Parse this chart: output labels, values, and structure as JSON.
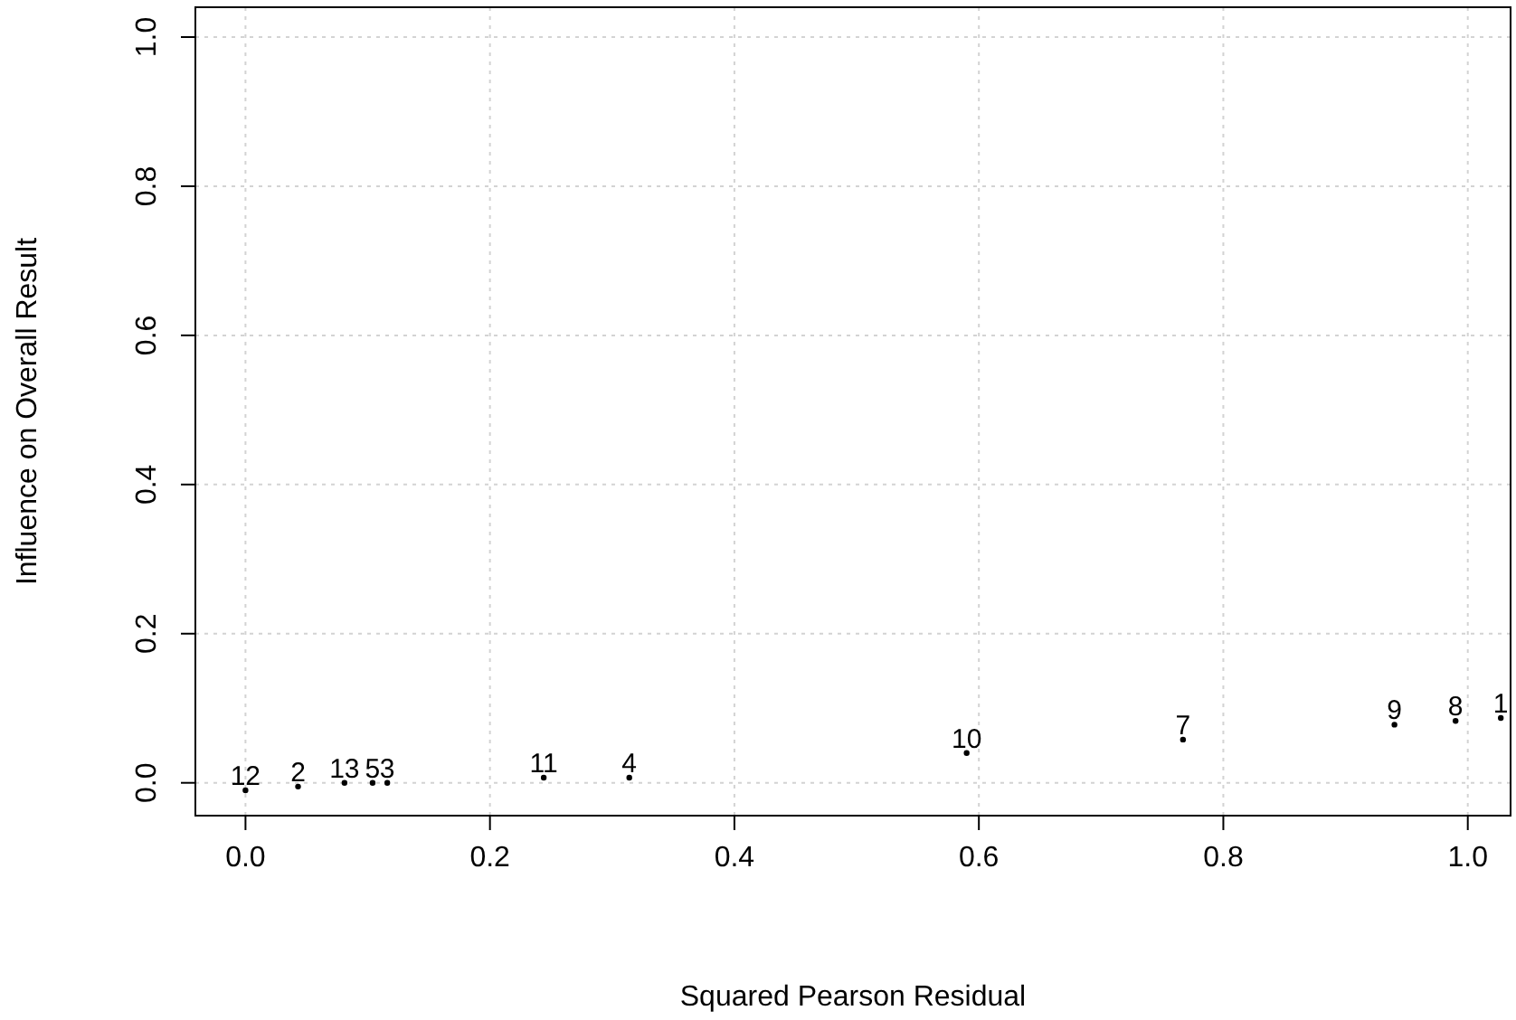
{
  "chart_data": {
    "type": "scatter",
    "xlabel": "Squared Pearson Residual",
    "ylabel": "Influence on Overall Result",
    "x": [
      0.0,
      0.043,
      0.081,
      0.104,
      0.116,
      0.244,
      0.314,
      0.59,
      0.767,
      0.94,
      0.99,
      1.027
    ],
    "values": [
      -0.01,
      -0.005,
      0,
      0,
      0,
      0.007,
      0.007,
      0.04,
      0.058,
      0.078,
      0.083,
      0.087
    ],
    "annotations": [
      {
        "text": "12",
        "x": 0.0,
        "y": -0.01
      },
      {
        "text": "2",
        "x": 0.043,
        "y": -0.005
      },
      {
        "text": "13",
        "x": 0.081,
        "y": 0
      },
      {
        "text": "5",
        "x": 0.104,
        "y": 0
      },
      {
        "text": "3",
        "x": 0.116,
        "y": 0
      },
      {
        "text": "11",
        "x": 0.244,
        "y": 0.007
      },
      {
        "text": "4",
        "x": 0.314,
        "y": 0.007
      },
      {
        "text": "10",
        "x": 0.59,
        "y": 0.04
      },
      {
        "text": "7",
        "x": 0.767,
        "y": 0.058
      },
      {
        "text": "9",
        "x": 0.94,
        "y": 0.078
      },
      {
        "text": "8",
        "x": 0.99,
        "y": 0.083
      },
      {
        "text": "1",
        "x": 1.027,
        "y": 0.087
      }
    ],
    "color": "#000000",
    "marker": "circle",
    "xlim": [
      -0.041,
      1.035
    ],
    "ylim": [
      -0.044,
      1.04
    ],
    "xticks": [
      {
        "value": 0,
        "label": "0.0"
      },
      0.2,
      0.4,
      0.6,
      0.8,
      {
        "value": 1,
        "label": "1.0"
      }
    ],
    "yticks": [
      {
        "value": 0,
        "label": "0.0"
      },
      0.2,
      0.4,
      0.6,
      0.8,
      {
        "value": 1,
        "label": "1.0"
      }
    ],
    "grid": true
  }
}
